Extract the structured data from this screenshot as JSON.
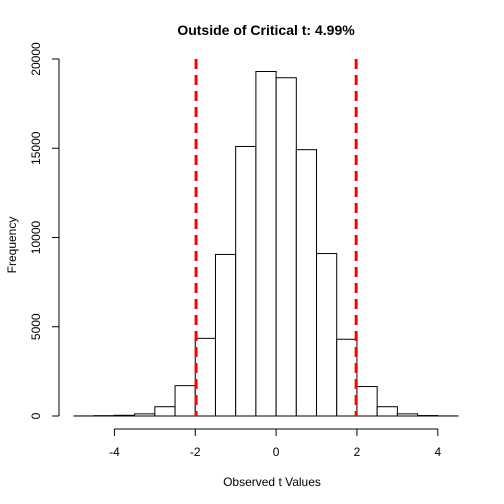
{
  "chart_data": {
    "type": "bar",
    "title": "Outside of Critical t: 4.99%",
    "xlabel": "Observed t Values",
    "ylabel": "Frequency",
    "xlim": [
      -5,
      4.5
    ],
    "ylim": [
      0,
      20000
    ],
    "x_ticks": [
      -4,
      -2,
      0,
      2,
      4
    ],
    "y_ticks": [
      0,
      5000,
      10000,
      15000,
      20000
    ],
    "bin_edges": [
      -5,
      -4.5,
      -4,
      -3.5,
      -3,
      -2.5,
      -2,
      -1.5,
      -1,
      -0.5,
      0,
      0.5,
      1,
      1.5,
      2,
      2.5,
      3,
      3.5,
      4,
      4.5
    ],
    "values": [
      4,
      20,
      40,
      120,
      520,
      1700,
      4350,
      9050,
      15100,
      19300,
      18950,
      14920,
      9100,
      4300,
      1650,
      520,
      120,
      25,
      5
    ],
    "bar_fill": "#ffffff",
    "bar_stroke": "#000000",
    "critical_lines": [
      {
        "x": -1.98,
        "color": "#ff0000",
        "style": "dashed"
      },
      {
        "x": 1.98,
        "color": "#ff0000",
        "style": "dashed"
      }
    ]
  }
}
